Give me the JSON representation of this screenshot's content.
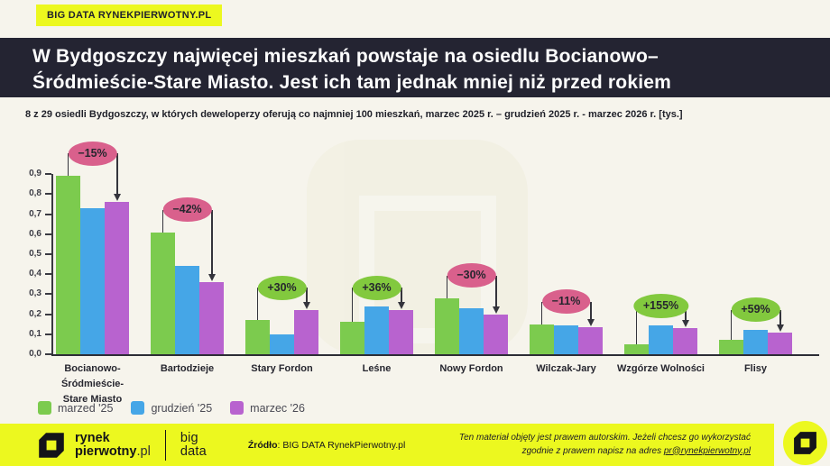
{
  "page": {
    "badge": "BIG DATA RYNEKPIERWOTNY.PL",
    "title_line1": "W Bydgoszczy najwięcej mieszkań powstaje na osiedlu Bocianowo–",
    "title_line2": "Śródmieście-Stare Miasto. Jest ich tam jednak mniej niż przed rokiem",
    "subtitle": "8 z 29 osiedli Bydgoszczy, w których deweloperzy oferują co najmniej 100 mieszkań, marzec 2025 r. – grudzień 2025 r. - marzec 2026 r. [tys.]"
  },
  "chart_data": {
    "type": "bar",
    "unit": "tys.",
    "categories": [
      "Bocianowo-\nŚródmieście-\nStare Miasto",
      "Bartodzieje",
      "Stary Fordon",
      "Leśne",
      "Nowy Fordon",
      "Wilczak-Jary",
      "Wzgórze Wolności",
      "Flisy"
    ],
    "series": [
      {
        "name": "marzed '25",
        "color": "#7CCB4E",
        "values": [
          0.89,
          0.61,
          0.17,
          0.16,
          0.28,
          0.15,
          0.05,
          0.07
        ]
      },
      {
        "name": "grudzień '25",
        "color": "#45A6E7",
        "values": [
          0.73,
          0.44,
          0.1,
          0.24,
          0.23,
          0.145,
          0.145,
          0.12
        ]
      },
      {
        "name": "marzec '26",
        "color": "#B863CF",
        "values": [
          0.76,
          0.36,
          0.22,
          0.22,
          0.2,
          0.135,
          0.13,
          0.11
        ]
      }
    ],
    "changes": [
      {
        "label": "−15%",
        "positive": false
      },
      {
        "label": "−42%",
        "positive": false
      },
      {
        "label": "+30%",
        "positive": true
      },
      {
        "label": "+36%",
        "positive": true
      },
      {
        "label": "−30%",
        "positive": false
      },
      {
        "label": "−11%",
        "positive": false
      },
      {
        "label": "+155%",
        "positive": true
      },
      {
        "label": "+59%",
        "positive": true
      }
    ],
    "badge_colors": {
      "positive": "#82C93E",
      "negative": "#D9608C"
    },
    "y_ticks": [
      0,
      0.1,
      0.2,
      0.3,
      0.4,
      0.5,
      0.6,
      0.7,
      0.8,
      0.9
    ],
    "ylim": [
      0,
      0.9
    ],
    "grid": false,
    "legend_position": "bottom-left",
    "title": "",
    "xlabel": "",
    "ylabel": ""
  },
  "footer": {
    "brand_line1": "rynek",
    "brand_line2_bold": "pierwotny",
    "brand_line2_suffix": ".pl",
    "bigdata_line1": "big",
    "bigdata_line2": "data",
    "source_label": "Źródło",
    "source_rest": ": BIG DATA RynekPierwotny.pl",
    "rights_line1": "Ten materiał objęty jest prawem autorskim. Jeżeli chcesz go wykorzystać",
    "rights_line2_prefix": "zgodnie z prawem napisz na adres ",
    "rights_email": "pr@rynekpierwotny.pl"
  }
}
